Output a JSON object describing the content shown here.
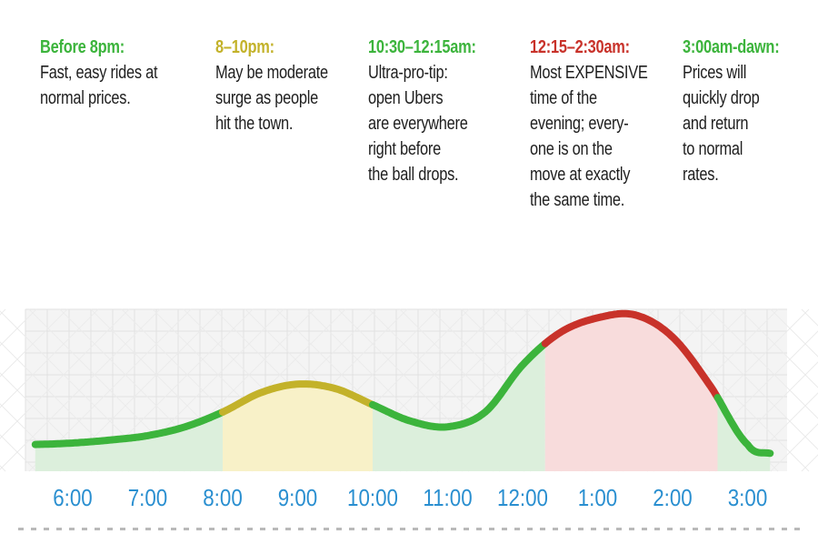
{
  "notes": [
    {
      "heading": "Before 8pm:",
      "text": "Fast, easy rides at\nnormal prices.",
      "color": "#3cb43c"
    },
    {
      "heading": "8–10pm:",
      "text": "May be moderate\nsurge as people\nhit the town.",
      "color": "#c3b22a"
    },
    {
      "heading": "10:30–12:15am:",
      "text": "Ultra-pro-tip:\nopen Ubers\nare everywhere\nright before\nthe ball drops.",
      "color": "#3cb43c"
    },
    {
      "heading": "12:15–2:30am:",
      "text": "Most EXPENSIVE\ntime of the\nevening; every-\none is on the\nmove at exactly\nthe same time.",
      "color": "#c8322a"
    },
    {
      "heading": "3:00am-dawn:",
      "text": "Prices will\nquickly drop\nand return\nto normal\nrates.",
      "color": "#3cb43c"
    }
  ],
  "chart_data": {
    "type": "area",
    "x_ticks": [
      "6:00",
      "7:00",
      "8:00",
      "9:00",
      "10:00",
      "11:00",
      "12:00",
      "1:00",
      "2:00",
      "3:00"
    ],
    "x": [
      5.5,
      6,
      6.5,
      7,
      7.5,
      8,
      8.5,
      9,
      9.5,
      10,
      10.5,
      11,
      11.5,
      12,
      12.5,
      13,
      13.5,
      14,
      14.5,
      15,
      15.3
    ],
    "values": [
      12,
      13,
      15,
      18,
      24,
      34,
      47,
      53,
      50,
      39,
      28,
      24,
      34,
      66,
      88,
      98,
      100,
      85,
      52,
      12,
      6
    ],
    "y_range": [
      0,
      110
    ],
    "grid": true,
    "segments": [
      {
        "from": 5.5,
        "to": 8,
        "color": "#3cb43c",
        "fill": "#dcefdc"
      },
      {
        "from": 8,
        "to": 10,
        "color": "#c3b22a",
        "fill": "#f8f1c8"
      },
      {
        "from": 10,
        "to": 12.3,
        "color": "#3cb43c",
        "fill": "#dcefdc"
      },
      {
        "from": 12.3,
        "to": 14.6,
        "color": "#c8322a",
        "fill": "#f8dcdc"
      },
      {
        "from": 14.6,
        "to": 15.3,
        "color": "#3cb43c",
        "fill": "#dcefdc"
      }
    ],
    "tick_color": "#2a8fd0"
  }
}
